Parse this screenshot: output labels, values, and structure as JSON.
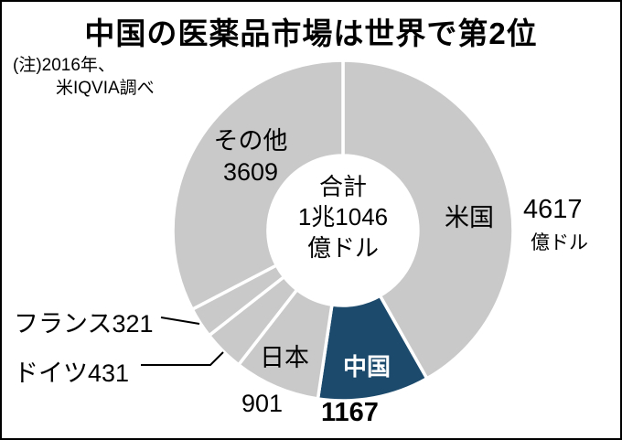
{
  "title": "中国の医薬品市場は世界で第2位",
  "note": {
    "line1": "(注)2016年、",
    "line2": "米IQVIA調べ"
  },
  "donut_center": {
    "line1": "合計",
    "line2": "1兆1046",
    "line3": "億ドル"
  },
  "chart_data": {
    "type": "pie",
    "donut": true,
    "title": "中国の医薬品市場は世界で第2位",
    "note": "(注)2016年、米IQVIA調べ",
    "unit": "億ドル",
    "center_label": "合計1兆1046億ドル",
    "total": 11046,
    "start_angle_deg": 0,
    "direction": "clockwise",
    "segments": [
      {
        "label": "米国",
        "value": 4617,
        "color": "#c9c9ca",
        "highlight": false
      },
      {
        "label": "中国",
        "value": 1167,
        "color": "#1b4a6c",
        "highlight": true
      },
      {
        "label": "日本",
        "value": 901,
        "color": "#c9c9ca",
        "highlight": false
      },
      {
        "label": "ドイツ",
        "value": 431,
        "color": "#c9c9ca",
        "highlight": false
      },
      {
        "label": "フランス",
        "value": 321,
        "color": "#c9c9ca",
        "highlight": false
      },
      {
        "label": "その他",
        "value": 3609,
        "color": "#c9c9ca",
        "highlight": false
      }
    ],
    "colors": {
      "default": "#c9c9ca",
      "highlight": "#1b4a6c",
      "divider": "#ffffff"
    },
    "legend_position": "around-chart",
    "grid": false
  }
}
